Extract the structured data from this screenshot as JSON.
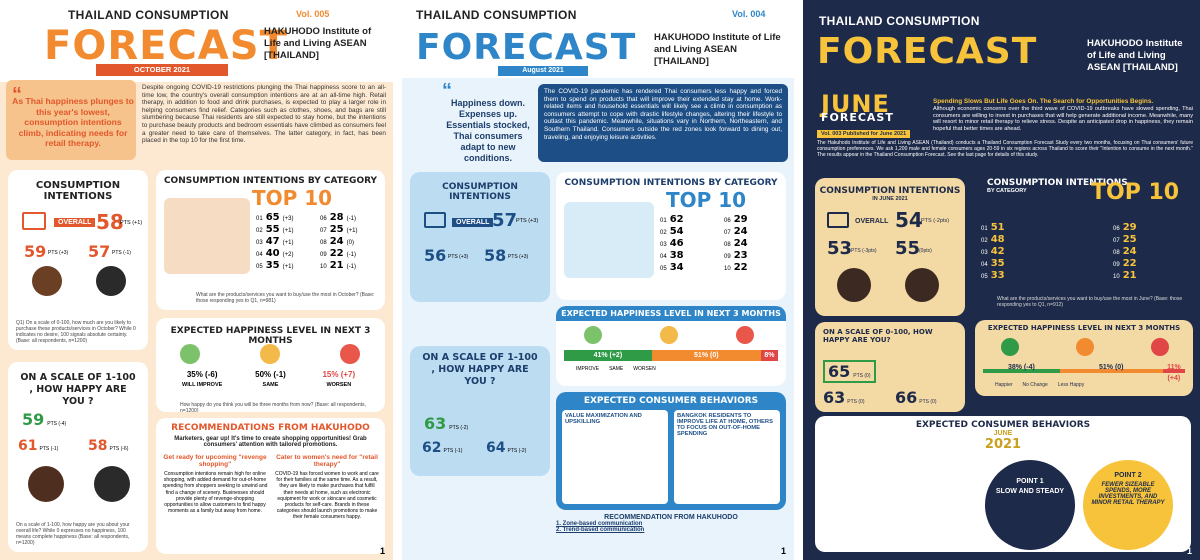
{
  "p1": {
    "brand": "THAILAND CONSUMPTION",
    "vol": "Vol. 005",
    "forecast": "FORECAST",
    "org": "HAKUHODO Institute of Life and Living ASEAN [THAILAND]",
    "month": "OCTOBER 2021",
    "quote": "As Thai happiness plunges to this year's lowest, consumption intentions climb, indicating needs for retail therapy.",
    "body": "Despite ongoing COVID-19 restrictions plunging the Thai happiness score to an all-time low, the country's overall consumption intentions are at an all-time high. Retail therapy, in addition to food and drink purchases, is expected to play a larger role in helping consumers find relief. Categories such as clothes, shoes, and bags are still slumbering because Thai residents are still expected to stay home, but the intentions to purchase beauty products and bedroom essentials have climbed as consumers feel a greater need to take care of themselves. The latter category, in fact, has been placed in the top 10 for the first time.",
    "ci_title": "CONSUMPTION INTENTIONS",
    "overall_label": "OVERALL",
    "overall": "58",
    "overall_delta": "PTS (+1)",
    "male": "59",
    "male_delta": "PTS (+3)",
    "female": "57",
    "female_delta": "PTS (-1)",
    "ci_note": "Q1) On a scale of 0-100, how much are you likely to purchase these products/services in October? While 0 indicates no desire, 100 signals absolute certainty. (Base: all respondents, n=1200)",
    "cat_title": "CONSUMPTION INTENTIONS BY CATEGORY",
    "top10": "TOP 10",
    "items": [
      {
        "rank": "01",
        "value": "65",
        "delta": "(+3)"
      },
      {
        "rank": "02",
        "value": "55",
        "delta": "(+1)"
      },
      {
        "rank": "03",
        "value": "47",
        "delta": "(+1)"
      },
      {
        "rank": "04",
        "value": "40",
        "delta": "(+2)"
      },
      {
        "rank": "05",
        "value": "35",
        "delta": "(+1)"
      },
      {
        "rank": "06",
        "value": "28",
        "delta": "(-1)"
      },
      {
        "rank": "07",
        "value": "25",
        "delta": "(+1)"
      },
      {
        "rank": "08",
        "value": "24",
        "delta": "(0)"
      },
      {
        "rank": "09",
        "value": "22",
        "delta": "(-1)"
      },
      {
        "rank": "10",
        "value": "21",
        "delta": "(-1)"
      }
    ],
    "cat_note": "What are the products/services you want to buy/use the most in October? (Base: those responding yes to Q1, n=981)",
    "hap_title": "EXPECTED HAPPINESS LEVEL IN NEXT 3 MONTHS",
    "improve": "35% (-6)",
    "same": "50% (-1)",
    "worsen": "15% (+7)",
    "improve_label": "WILL IMPROVE",
    "same_label": "SAME",
    "worsen_label": "WORSEN",
    "hap_note": "How happy do you think you will be three months from now? (Base: all respondents, n=1200)",
    "scale_title": "ON A SCALE OF 1-100 , HOW HAPPY ARE YOU ?",
    "hap_overall": "59",
    "hap_overall_delta": "PTS (-4)",
    "hap_male": "61",
    "hap_male_delta": "PTS (-1)",
    "hap_female": "58",
    "hap_female_delta": "PTS (-6)",
    "rec_title": "RECOMMENDATIONS FROM HAKUHODO",
    "rec_sub": "Marketers, gear up! It's time to create shopping opportunities! Grab consumers' attention with tailored promotions.",
    "rec1_title": "Get ready for upcoming \"revenge shopping\"",
    "rec1_body": "Consumption intentions remain high for online shopping, with added demand for out-of-home spending from shoppers seeking to unwind and find a change of scenery. Businesses should provide plenty of revenge-shopping opportunities to allow customers to find happy moments as a family but away from home.",
    "rec2_title": "Cater to women's need for \"retail therapy\"",
    "rec2_body": "COVID-19 has forced women to work and care for their families at the same time. As a result, they are likely to make purchases that fulfill their needs at home, such as electronic equipment for work or skincare and cosmetic products for self-care. Brands in these categories should launch promotions to make their female consumers happy.",
    "hap_q": "On a scale of 1-100, how happy are you about your overall life? While 0 expresses no happiness, 100 means complete happiness (Base: all respondents, n=1200)",
    "page": "1"
  },
  "p2": {
    "brand": "THAILAND CONSUMPTION",
    "vol": "Vol. 004",
    "forecast": "FORECAST",
    "org": "HAKUHODO Institute of Life and Living ASEAN [THAILAND]",
    "month": "August 2021",
    "quote": "Happiness down. Expenses up. Essentials stocked, Thai consumers adapt to new conditions.",
    "body": "The COVID-19 pandemic has rendered Thai consumers less happy and forced them to spend on products that will improve their extended stay at home. Work-related items and household essentials will likely see a climb in consumption as consumers attempt to cope with drastic lifestyle changes, altering their lifestyle to outlast this pandemic. Meanwhile, situations vary in Northern, Northeastern, and Southern Thailand. Consumers outside the red zones look forward to dining out, traveling, and enjoying leisure activities.",
    "ci_title": "CONSUMPTION INTENTIONS",
    "overall_label": "OVERALL",
    "overall": "57",
    "overall_delta": "PTS (+3)",
    "male": "56",
    "male_delta": "PTS (+3)",
    "female": "58",
    "female_delta": "PTS (+3)",
    "cat_title": "CONSUMPTION INTENTIONS BY CATEGORY",
    "top10": "TOP 10",
    "items": [
      {
        "rank": "01",
        "value": "62"
      },
      {
        "rank": "02",
        "value": "54"
      },
      {
        "rank": "03",
        "value": "46"
      },
      {
        "rank": "04",
        "value": "38"
      },
      {
        "rank": "05",
        "value": "34"
      },
      {
        "rank": "06",
        "value": "29"
      },
      {
        "rank": "07",
        "value": "24"
      },
      {
        "rank": "08",
        "value": "24"
      },
      {
        "rank": "09",
        "value": "23"
      },
      {
        "rank": "10",
        "value": "22"
      }
    ],
    "hap_title": "EXPECTED HAPPINESS LEVEL IN NEXT 3 MONTHS",
    "improve": "41% (+2)",
    "same": "51% (0)",
    "worsen": "8% (-3)",
    "improve_label": "IMPROVE",
    "same_label": "SAME",
    "worsen_label": "WORSEN",
    "scale_title": "ON A SCALE OF 1-100 , HOW HAPPY ARE YOU ?",
    "hap_overall": "63",
    "hap_overall_delta": "PTS (-2)",
    "hap_male": "62",
    "hap_male_delta": "PTS (-1)",
    "hap_female": "64",
    "hap_female_delta": "PTS (-2)",
    "beh_title": "EXPECTED CONSUMER BEHAVIORS",
    "beh1_title": "VALUE MAXIMIZATION AND UPSKILLING",
    "beh2_title": "BANGKOK RESIDENTS TO IMPROVE LIFE AT HOME, OTHERS TO FOCUS ON OUT-OF-HOME SPENDING",
    "rec_title": "RECOMMENDATION FROM HAKUHODO",
    "rec1": "1. Zone-based communication",
    "rec2": "2. Trend-based communication",
    "page": "1"
  },
  "p3": {
    "brand": "THAILAND CONSUMPTION",
    "forecast": "FORECAST",
    "org": "HAKUHODO Institute of Life and Living ASEAN [THAILAND]",
    "june": "JUNE",
    "june_forecast": "FORECAST",
    "headline": "Spending Slows But Life Goes On. The Search for Opportunities Begins.",
    "body": "Although economic concerns over the third wave of COVID-19 outbreaks have slowed spending, Thai consumers are willing to invest in purchases that will help generate additional income. Meanwhile, many will resort to minor retail therapy to relieve stress. Despite an anticipated drop in happiness, they remain hopeful that better times are ahead.",
    "pub": "Vol. 003 Published for June 2021",
    "intro": "The Hakuhodo Institute of Life and Living ASEAN (Thailand) conducts a Thailand Consumption Forecast Study every two months, focusing on Thai consumers' future consumption preferences. We ask 1,200 male and female consumers ages 20-59 in six regions across Thailand to score their \"Intention to consume in the next month.\" The results appear in the Thailand Consumption Forecast. See the last page for details of this study.",
    "ci_title": "CONSUMPTION INTENTIONS",
    "ci_sub": "IN JUNE 2021",
    "overall_label": "OVERALL",
    "overall": "54",
    "overall_delta": "PTS (-2pts)",
    "male": "53",
    "male_delta": "PTS (-3pts)",
    "female": "55",
    "female_delta": "(0pts)",
    "cat_title": "CONSUMPTION INTENTIONS",
    "cat_sub": "BY CATEGORY",
    "top10": "TOP 10",
    "items": [
      {
        "rank": "01",
        "value": "51"
      },
      {
        "rank": "02",
        "value": "48"
      },
      {
        "rank": "03",
        "value": "42"
      },
      {
        "rank": "04",
        "value": "35"
      },
      {
        "rank": "05",
        "value": "33"
      },
      {
        "rank": "06",
        "value": "29"
      },
      {
        "rank": "07",
        "value": "25"
      },
      {
        "rank": "08",
        "value": "24"
      },
      {
        "rank": "09",
        "value": "22"
      },
      {
        "rank": "10",
        "value": "21"
      }
    ],
    "cat_note": "What are the products/services you want to buy/use the most in June? (Base: those responding yes to Q1, n=912)",
    "hap_title": "EXPECTED HAPPINESS LEVEL IN NEXT 3 MONTHS",
    "improve": "38% (-4)",
    "same": "51% (0)",
    "worsen": "11% (+4)",
    "improve_label": "Happier",
    "same_label": "No Change",
    "worsen_label": "Less Happy",
    "scale_title": "ON A SCALE OF 0-100, HOW HAPPY ARE YOU?",
    "hap_overall": "65",
    "hap_overall_delta": "PTS (0)",
    "hap_male": "63",
    "hap_male_delta": "PTS (0)",
    "hap_female": "66",
    "hap_female_delta": "PTS (0)",
    "beh_title": "EXPECTED CONSUMER BEHAVIORS",
    "beh_month": "JUNE",
    "beh_year": "2021",
    "point1": "POINT 1",
    "point1_title": "SLOW AND STEADY",
    "point2": "POINT 2",
    "point2_title": "FEWER SIZEABLE SPENDS, MORE INVESTMENTS, AND MINOR RETAIL THERAPY",
    "page": "1"
  },
  "colors": {
    "orange": "#f28b30",
    "blue": "#2e86c8",
    "navy": "#1e2a4a",
    "yellow": "#f6c33b",
    "green": "#2f9b47",
    "red": "#e04646"
  }
}
